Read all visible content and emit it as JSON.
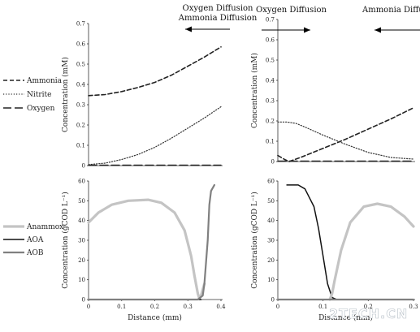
{
  "watermark": "2TECH.CN",
  "colors": {
    "ammonia": "#222222",
    "nitrite": "#333333",
    "oxygen": "#222222",
    "anammox": "#c4c4c4",
    "aoa": "#111111",
    "aob": "#808080",
    "arrow": "#000000"
  },
  "legends": {
    "top": [
      {
        "name": "Ammonia",
        "style": "dashed"
      },
      {
        "name": "Nitrite",
        "style": "dotted"
      },
      {
        "name": "Oxygen",
        "style": "longdash"
      }
    ],
    "bottom": [
      {
        "name": "Anammox",
        "style": "solid-light"
      },
      {
        "name": "AOA",
        "style": "solid-black"
      },
      {
        "name": "AOB",
        "style": "solid-grey"
      }
    ]
  },
  "chart_data": [
    {
      "id": "top-left",
      "type": "line",
      "title_lines": [
        "Oxygen Diffusion",
        "Ammonia Diffusion"
      ],
      "arrow_direction": "left",
      "xlabel": "",
      "ylabel": "Concentration (mM)",
      "xlim": [
        0,
        0.4
      ],
      "ylim": [
        0,
        0.7
      ],
      "xticks": [],
      "yticks": [
        "0",
        "0.1",
        "0.2",
        "0.3",
        "0.4",
        "0.5",
        "0.6",
        "0.7"
      ],
      "series": [
        {
          "name": "Ammonia",
          "style": "dashed",
          "x": [
            0,
            0.05,
            0.1,
            0.15,
            0.2,
            0.25,
            0.3,
            0.35,
            0.4
          ],
          "y": [
            0.345,
            0.35,
            0.365,
            0.385,
            0.41,
            0.445,
            0.49,
            0.535,
            0.585
          ]
        },
        {
          "name": "Nitrite",
          "style": "dotted",
          "x": [
            0,
            0.05,
            0.1,
            0.15,
            0.2,
            0.25,
            0.3,
            0.35,
            0.4
          ],
          "y": [
            0.005,
            0.012,
            0.03,
            0.055,
            0.09,
            0.135,
            0.185,
            0.235,
            0.29
          ]
        },
        {
          "name": "Oxygen",
          "style": "longdash",
          "x": [
            0,
            0.4
          ],
          "y": [
            0.002,
            0.002
          ]
        }
      ]
    },
    {
      "id": "top-right",
      "type": "line",
      "title_lines": [
        "Oxygen Diffusion",
        "Ammonia Diffusion"
      ],
      "arrow_direction": "split",
      "xlabel": "",
      "ylabel": "Concentration (mM)",
      "xlim": [
        0,
        0.3
      ],
      "ylim": [
        0,
        0.7
      ],
      "xticks": [],
      "yticks": [
        "0",
        "0.1",
        "0.2",
        "0.3",
        "0.4",
        "0.5",
        "0.6",
        "0.7"
      ],
      "series": [
        {
          "name": "Ammonia",
          "style": "dashed",
          "x": [
            0,
            0.015,
            0.025,
            0.05,
            0.1,
            0.15,
            0.2,
            0.25,
            0.3
          ],
          "y": [
            0.03,
            0.01,
            0.0,
            0.02,
            0.065,
            0.11,
            0.16,
            0.21,
            0.265
          ]
        },
        {
          "name": "Nitrite",
          "style": "dotted",
          "x": [
            0,
            0.02,
            0.04,
            0.06,
            0.1,
            0.15,
            0.2,
            0.25,
            0.3
          ],
          "y": [
            0.195,
            0.195,
            0.188,
            0.17,
            0.13,
            0.085,
            0.045,
            0.02,
            0.012
          ]
        },
        {
          "name": "Oxygen",
          "style": "longdash",
          "x": [
            0,
            0.3
          ],
          "y": [
            0.002,
            0.002
          ]
        }
      ]
    },
    {
      "id": "bottom-left",
      "type": "line",
      "xlabel": "Distance (mm)",
      "ylabel": "Concentration (gCOD L⁻¹)",
      "xlim": [
        0,
        0.4
      ],
      "ylim": [
        0,
        60
      ],
      "xticks": [
        "0",
        "0.1",
        "0.2",
        "0.3",
        "0.4"
      ],
      "yticks": [
        "0",
        "10",
        "20",
        "30",
        "40",
        "50",
        "60"
      ],
      "series": [
        {
          "name": "Anammox",
          "style": "solid-light",
          "x": [
            0,
            0.03,
            0.07,
            0.12,
            0.18,
            0.22,
            0.26,
            0.29,
            0.31,
            0.32,
            0.33,
            0.335,
            0.34,
            0.35
          ],
          "y": [
            39,
            44,
            48,
            50,
            50.5,
            49,
            44,
            35,
            22,
            12,
            3,
            0.5,
            2,
            8
          ]
        },
        {
          "name": "AOA",
          "style": "solid-black",
          "x": [
            0,
            0.34
          ],
          "y": [
            0,
            0
          ]
        },
        {
          "name": "AOB",
          "style": "solid-grey",
          "x": [
            0,
            0.33,
            0.345,
            0.35,
            0.36,
            0.365,
            0.37,
            0.38
          ],
          "y": [
            0,
            0,
            2,
            8,
            30,
            48,
            55,
            58
          ]
        }
      ]
    },
    {
      "id": "bottom-right",
      "type": "line",
      "xlabel": "Distance (mm)",
      "ylabel": "Concentration (gCOD L⁻¹)",
      "xlim": [
        0,
        0.3
      ],
      "ylim": [
        0,
        60
      ],
      "xticks": [
        "0",
        "0.1",
        "0.2",
        "0.3"
      ],
      "yticks": [
        "0",
        "10",
        "20",
        "30",
        "40",
        "50",
        "60"
      ],
      "series": [
        {
          "name": "AOA",
          "style": "solid-black",
          "x": [
            0.02,
            0.045,
            0.06,
            0.08,
            0.09,
            0.1,
            0.11,
            0.12,
            0.13,
            0.3
          ],
          "y": [
            58,
            58,
            56,
            47,
            36,
            22,
            8,
            1,
            0,
            0
          ]
        },
        {
          "name": "Anammox",
          "style": "solid-light",
          "x": [
            0.115,
            0.12,
            0.125,
            0.14,
            0.16,
            0.19,
            0.22,
            0.25,
            0.28,
            0.3
          ],
          "y": [
            0,
            3,
            9,
            25,
            39,
            47,
            48.5,
            47,
            42,
            37
          ]
        },
        {
          "name": "AOB",
          "style": "solid-grey",
          "x": [
            0,
            0.3
          ],
          "y": [
            0,
            0
          ]
        }
      ]
    }
  ]
}
